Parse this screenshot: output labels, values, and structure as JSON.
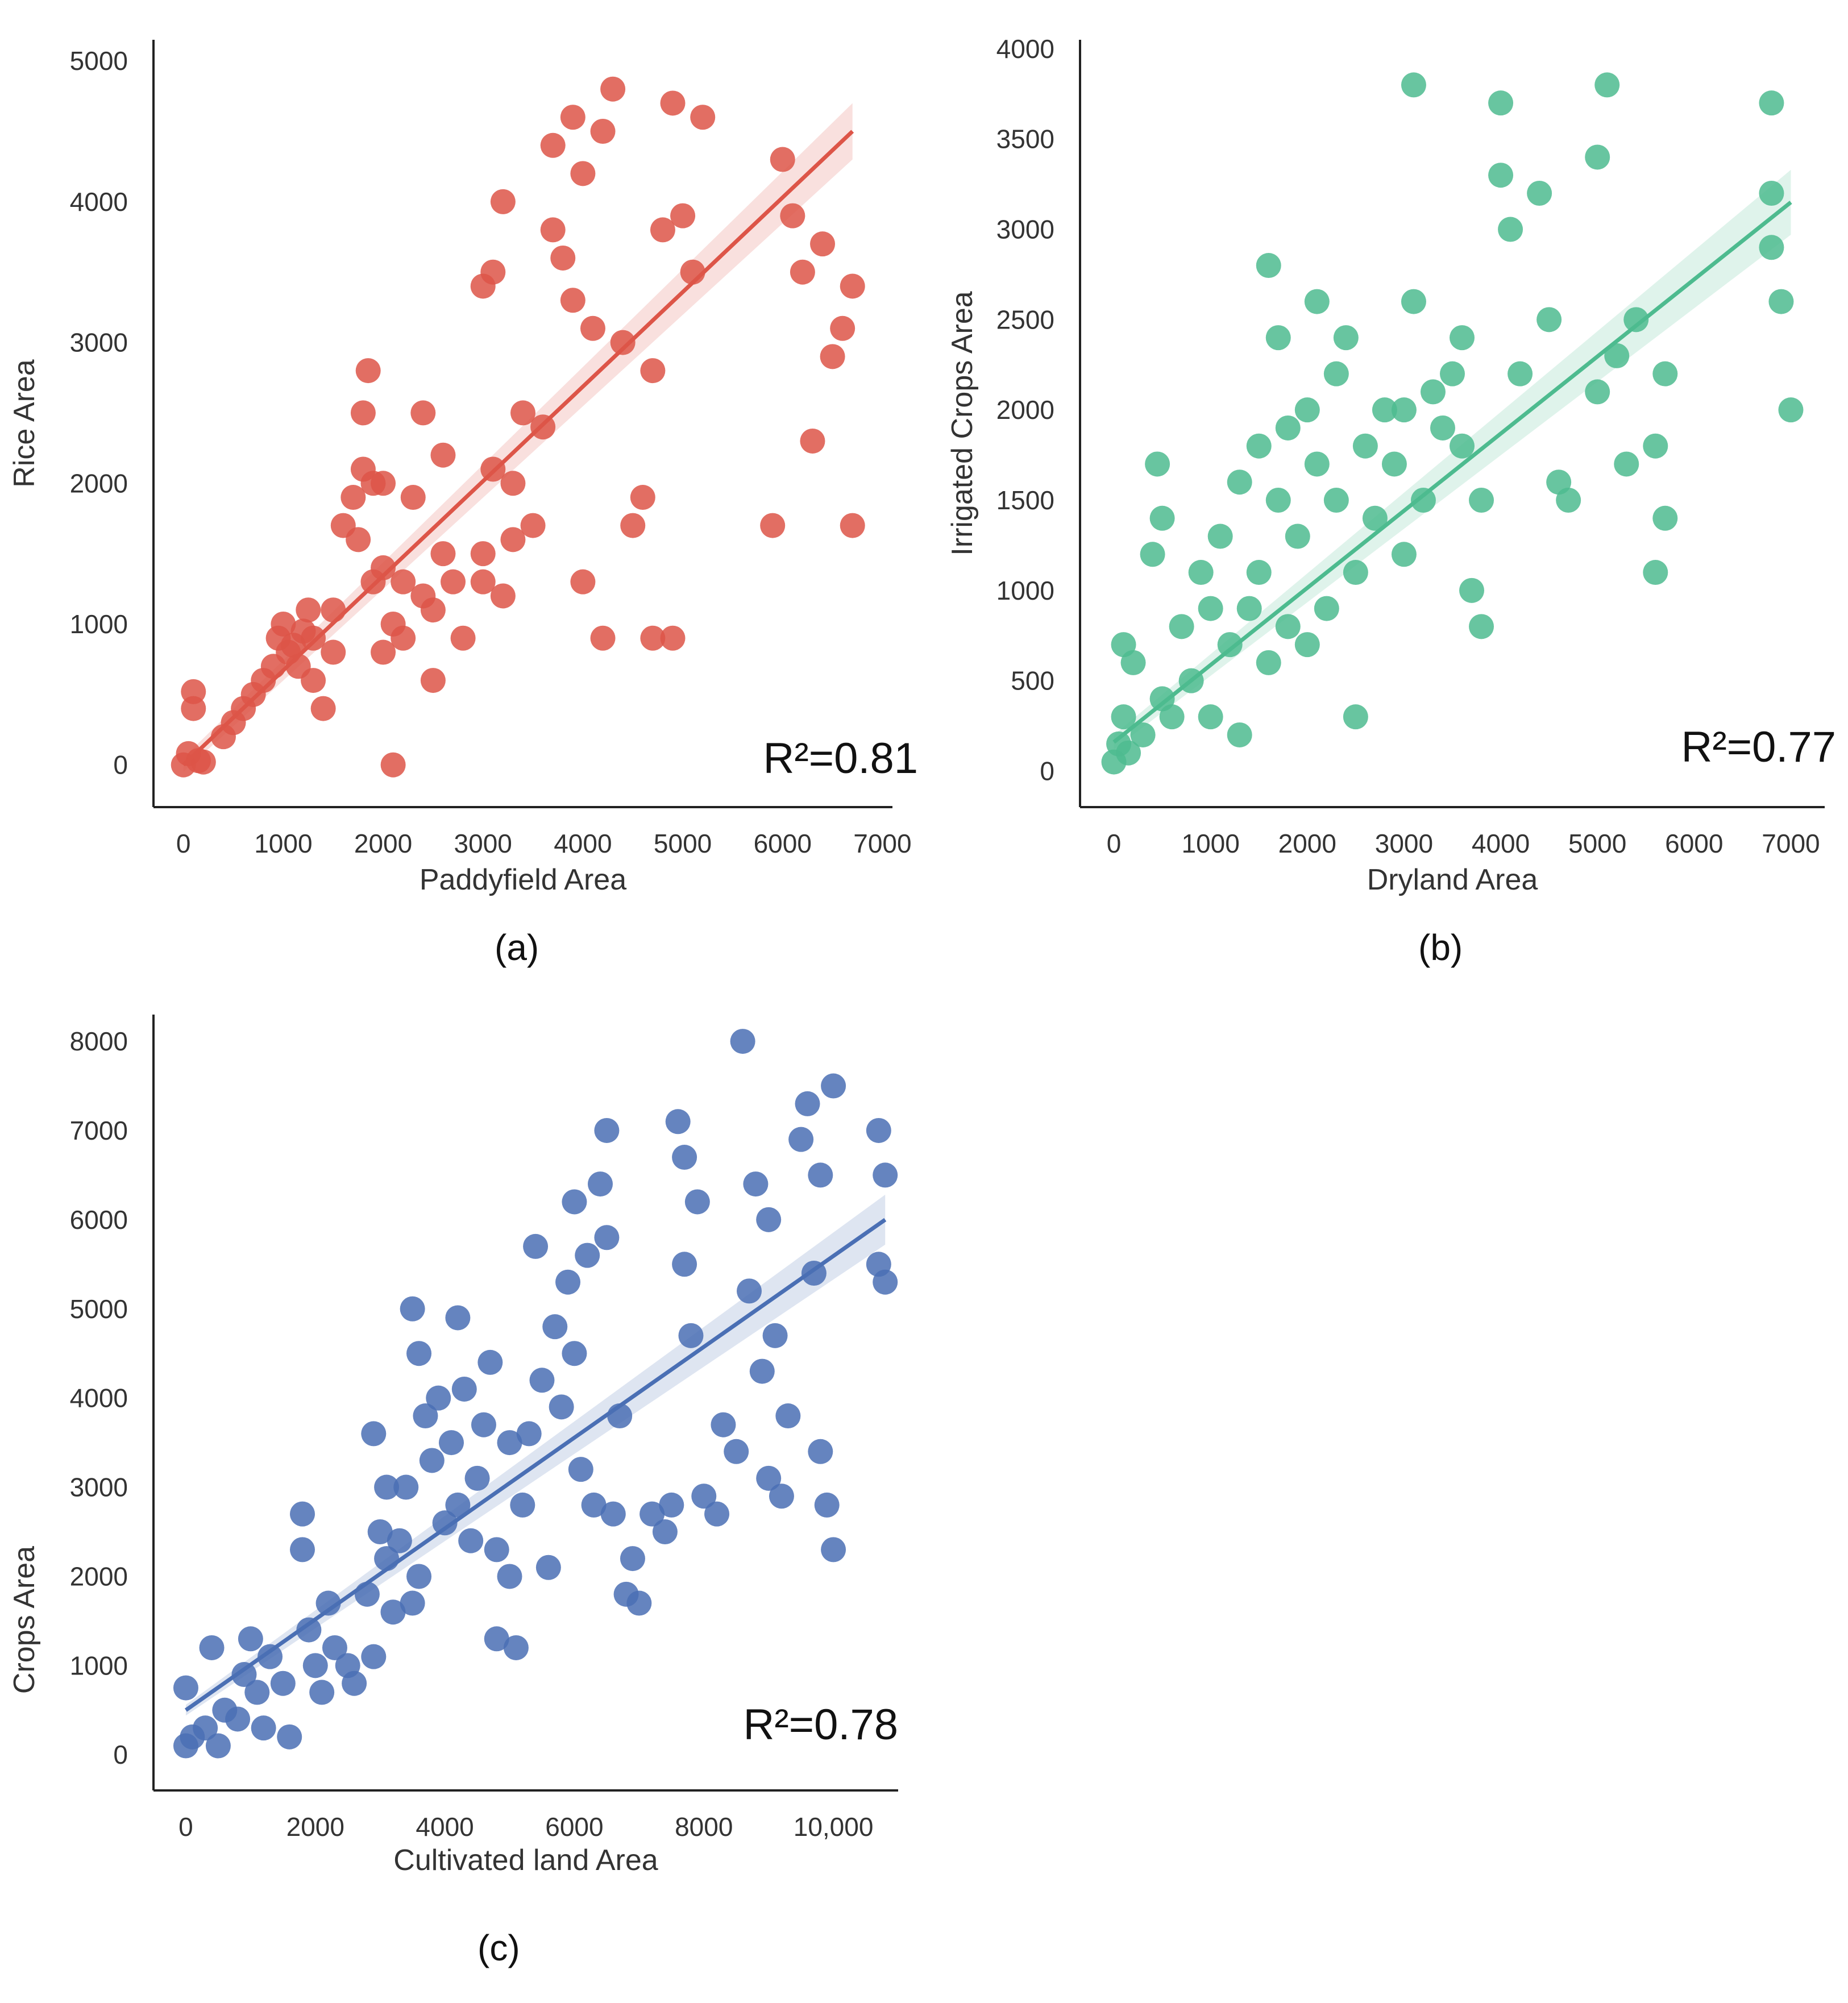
{
  "panels": [
    {
      "label": "(a)",
      "r2": "R²=0.81"
    },
    {
      "label": "(b)",
      "r2": "R²=0.77"
    },
    {
      "label": "(c)",
      "r2": "R²=0.78"
    }
  ],
  "chart_data": [
    {
      "type": "scatter",
      "panel": "(a)",
      "xlabel": "Paddyfield Area",
      "ylabel": "Rice Area",
      "xlim": [
        -300,
        7100
      ],
      "ylim": [
        -300,
        5150
      ],
      "xticks": [
        0,
        1000,
        2000,
        3000,
        4000,
        5000,
        6000,
        7000
      ],
      "xtick_labels": [
        "0",
        "1000",
        "2000",
        "3000",
        "4000",
        "5000",
        "6000",
        "7000"
      ],
      "yticks": [
        0,
        1000,
        2000,
        3000,
        4000,
        5000
      ],
      "ytick_labels": [
        "0",
        "1000",
        "2000",
        "3000",
        "4000",
        "5000"
      ],
      "color": "#dd5548",
      "r2": "R²=0.81",
      "fit": {
        "x": [
          0,
          6700
        ],
        "y": [
          0,
          4500
        ],
        "ci_half_width": [
          50,
          200
        ]
      },
      "points": [
        [
          0,
          0
        ],
        [
          50,
          80
        ],
        [
          100,
          520
        ],
        [
          100,
          400
        ],
        [
          150,
          30
        ],
        [
          200,
          20
        ],
        [
          400,
          200
        ],
        [
          500,
          300
        ],
        [
          600,
          400
        ],
        [
          700,
          500
        ],
        [
          800,
          600
        ],
        [
          900,
          700
        ],
        [
          950,
          900
        ],
        [
          1000,
          1000
        ],
        [
          1050,
          800
        ],
        [
          1100,
          850
        ],
        [
          1150,
          700
        ],
        [
          1200,
          950
        ],
        [
          1250,
          1100
        ],
        [
          1300,
          900
        ],
        [
          1300,
          600
        ],
        [
          1400,
          400
        ],
        [
          1500,
          1100
        ],
        [
          1500,
          800
        ],
        [
          1600,
          1700
        ],
        [
          1700,
          1900
        ],
        [
          1750,
          1600
        ],
        [
          1800,
          2100
        ],
        [
          1800,
          2500
        ],
        [
          1850,
          2800
        ],
        [
          1900,
          2000
        ],
        [
          1900,
          1300
        ],
        [
          2000,
          1400
        ],
        [
          2000,
          800
        ],
        [
          2100,
          1000
        ],
        [
          2100,
          0
        ],
        [
          2200,
          1300
        ],
        [
          2200,
          900
        ],
        [
          2300,
          1900
        ],
        [
          2400,
          2500
        ],
        [
          2400,
          1200
        ],
        [
          2500,
          1100
        ],
        [
          2500,
          600
        ],
        [
          2600,
          1500
        ],
        [
          2700,
          1300
        ],
        [
          2800,
          900
        ],
        [
          3000,
          1500
        ],
        [
          3000,
          1300
        ],
        [
          3000,
          3400
        ],
        [
          3100,
          3500
        ],
        [
          3100,
          2100
        ],
        [
          3200,
          4000
        ],
        [
          3200,
          1200
        ],
        [
          3300,
          2000
        ],
        [
          3300,
          1600
        ],
        [
          3400,
          2500
        ],
        [
          3500,
          1700
        ],
        [
          3600,
          2400
        ],
        [
          3700,
          4400
        ],
        [
          3700,
          3800
        ],
        [
          3800,
          3600
        ],
        [
          3900,
          4600
        ],
        [
          3900,
          3300
        ],
        [
          4000,
          4200
        ],
        [
          4000,
          1300
        ],
        [
          4100,
          3100
        ],
        [
          4200,
          900
        ],
        [
          4200,
          4500
        ],
        [
          4300,
          4800
        ],
        [
          4400,
          3000
        ],
        [
          4500,
          1700
        ],
        [
          4600,
          1900
        ],
        [
          4700,
          2800
        ],
        [
          4700,
          900
        ],
        [
          4800,
          3800
        ],
        [
          4900,
          4700
        ],
        [
          4900,
          900
        ],
        [
          5000,
          3900
        ],
        [
          5100,
          3500
        ],
        [
          5200,
          4600
        ],
        [
          6000,
          4300
        ],
        [
          6100,
          3900
        ],
        [
          6200,
          3500
        ],
        [
          6300,
          2300
        ],
        [
          6400,
          3700
        ],
        [
          6500,
          2900
        ],
        [
          6600,
          3100
        ],
        [
          6700,
          3400
        ],
        [
          6700,
          1700
        ],
        [
          5900,
          1700
        ],
        [
          2000,
          2000
        ],
        [
          2600,
          2200
        ]
      ]
    },
    {
      "type": "scatter",
      "panel": "(b)",
      "xlabel": "Dryland Area",
      "ylabel": "Irrigated Crops Area",
      "xlim": [
        -350,
        7350
      ],
      "ylim": [
        -200,
        4050
      ],
      "xticks": [
        0,
        1000,
        2000,
        3000,
        4000,
        5000,
        6000,
        7000
      ],
      "xtick_labels": [
        "0",
        "1000",
        "2000",
        "3000",
        "4000",
        "5000",
        "6000",
        "7000"
      ],
      "yticks": [
        0,
        500,
        1000,
        1500,
        2000,
        2500,
        3000,
        3500,
        4000
      ],
      "ytick_labels": [
        "0",
        "500",
        "1000",
        "1500",
        "2000",
        "2500",
        "3000",
        "3500",
        "4000"
      ],
      "color": "#4dbb8f",
      "r2": "R²=0.77",
      "fit": {
        "x": [
          0,
          7000
        ],
        "y": [
          160,
          3150
        ],
        "ci_half_width": [
          40,
          180
        ]
      },
      "points": [
        [
          0,
          50
        ],
        [
          50,
          150
        ],
        [
          100,
          700
        ],
        [
          100,
          300
        ],
        [
          150,
          100
        ],
        [
          200,
          600
        ],
        [
          300,
          200
        ],
        [
          400,
          1200
        ],
        [
          450,
          1700
        ],
        [
          500,
          400
        ],
        [
          500,
          1400
        ],
        [
          600,
          300
        ],
        [
          700,
          800
        ],
        [
          800,
          500
        ],
        [
          900,
          1100
        ],
        [
          1000,
          900
        ],
        [
          1000,
          300
        ],
        [
          1100,
          1300
        ],
        [
          1200,
          700
        ],
        [
          1300,
          1600
        ],
        [
          1300,
          200
        ],
        [
          1400,
          900
        ],
        [
          1500,
          1800
        ],
        [
          1500,
          1100
        ],
        [
          1600,
          2800
        ],
        [
          1600,
          600
        ],
        [
          1700,
          1500
        ],
        [
          1700,
          2400
        ],
        [
          1800,
          800
        ],
        [
          1800,
          1900
        ],
        [
          1900,
          1300
        ],
        [
          2000,
          2000
        ],
        [
          2000,
          700
        ],
        [
          2100,
          2600
        ],
        [
          2100,
          1700
        ],
        [
          2200,
          900
        ],
        [
          2300,
          2200
        ],
        [
          2300,
          1500
        ],
        [
          2400,
          2400
        ],
        [
          2500,
          1100
        ],
        [
          2500,
          300
        ],
        [
          2600,
          1800
        ],
        [
          2700,
          1400
        ],
        [
          2800,
          2000
        ],
        [
          2900,
          1700
        ],
        [
          3000,
          2000
        ],
        [
          3000,
          1200
        ],
        [
          3100,
          3800
        ],
        [
          3100,
          2600
        ],
        [
          3200,
          1500
        ],
        [
          3300,
          2100
        ],
        [
          3400,
          1900
        ],
        [
          3500,
          2200
        ],
        [
          3600,
          2400
        ],
        [
          3600,
          1800
        ],
        [
          3700,
          1000
        ],
        [
          3800,
          800
        ],
        [
          3800,
          1500
        ],
        [
          4000,
          3700
        ],
        [
          4000,
          3300
        ],
        [
          4100,
          3000
        ],
        [
          4200,
          2200
        ],
        [
          4400,
          3200
        ],
        [
          4500,
          2500
        ],
        [
          4600,
          1600
        ],
        [
          4700,
          1500
        ],
        [
          5000,
          2100
        ],
        [
          5000,
          3400
        ],
        [
          5100,
          3800
        ],
        [
          5200,
          2300
        ],
        [
          5300,
          1700
        ],
        [
          5400,
          2500
        ],
        [
          5600,
          1800
        ],
        [
          5600,
          1100
        ],
        [
          5700,
          2200
        ],
        [
          5700,
          1400
        ],
        [
          6800,
          3700
        ],
        [
          6800,
          3200
        ],
        [
          6900,
          2600
        ],
        [
          6800,
          2900
        ],
        [
          7000,
          2000
        ]
      ]
    },
    {
      "type": "scatter",
      "panel": "(c)",
      "xlabel": "Cultivated land Area",
      "ylabel": "Crops Area",
      "xlim": [
        -500,
        11000
      ],
      "ylim": [
        -400,
        8300
      ],
      "xticks": [
        0,
        2000,
        4000,
        6000,
        8000,
        10000
      ],
      "xtick_labels": [
        "0",
        "2000",
        "4000",
        "6000",
        "8000",
        "10,000"
      ],
      "yticks": [
        0,
        1000,
        2000,
        3000,
        4000,
        5000,
        6000,
        7000,
        8000
      ],
      "ytick_labels": [
        "0",
        "1000",
        "2000",
        "3000",
        "4000",
        "5000",
        "6000",
        "7000",
        "8000"
      ],
      "color": "#4a6fb4",
      "r2": "R²=0.78",
      "fit": {
        "x": [
          0,
          10800
        ],
        "y": [
          500,
          6000
        ],
        "ci_half_width": [
          60,
          280
        ]
      },
      "points": [
        [
          0,
          100
        ],
        [
          0,
          750
        ],
        [
          100,
          200
        ],
        [
          300,
          300
        ],
        [
          400,
          1200
        ],
        [
          500,
          100
        ],
        [
          600,
          500
        ],
        [
          800,
          400
        ],
        [
          900,
          900
        ],
        [
          1000,
          1300
        ],
        [
          1100,
          700
        ],
        [
          1200,
          300
        ],
        [
          1300,
          1100
        ],
        [
          1500,
          800
        ],
        [
          1600,
          200
        ],
        [
          1800,
          2300
        ],
        [
          1800,
          2700
        ],
        [
          1900,
          1400
        ],
        [
          2000,
          1000
        ],
        [
          2100,
          700
        ],
        [
          2200,
          1700
        ],
        [
          2300,
          1200
        ],
        [
          2500,
          1000
        ],
        [
          2600,
          800
        ],
        [
          2800,
          1800
        ],
        [
          2900,
          1100
        ],
        [
          2900,
          3600
        ],
        [
          3000,
          2500
        ],
        [
          3100,
          3000
        ],
        [
          3100,
          2200
        ],
        [
          3200,
          1600
        ],
        [
          3300,
          2400
        ],
        [
          3400,
          3000
        ],
        [
          3500,
          5000
        ],
        [
          3500,
          1700
        ],
        [
          3600,
          4500
        ],
        [
          3600,
          2000
        ],
        [
          3700,
          3800
        ],
        [
          3800,
          3300
        ],
        [
          3900,
          4000
        ],
        [
          4000,
          2600
        ],
        [
          4100,
          3500
        ],
        [
          4200,
          4900
        ],
        [
          4200,
          2800
        ],
        [
          4300,
          4100
        ],
        [
          4400,
          2400
        ],
        [
          4500,
          3100
        ],
        [
          4600,
          3700
        ],
        [
          4700,
          4400
        ],
        [
          4800,
          2300
        ],
        [
          4800,
          1300
        ],
        [
          5000,
          2000
        ],
        [
          5000,
          3500
        ],
        [
          5100,
          1200
        ],
        [
          5200,
          2800
        ],
        [
          5300,
          3600
        ],
        [
          5400,
          5700
        ],
        [
          5500,
          4200
        ],
        [
          5600,
          2100
        ],
        [
          5700,
          4800
        ],
        [
          5800,
          3900
        ],
        [
          5900,
          5300
        ],
        [
          6000,
          6200
        ],
        [
          6000,
          4500
        ],
        [
          6100,
          3200
        ],
        [
          6200,
          5600
        ],
        [
          6300,
          2800
        ],
        [
          6400,
          6400
        ],
        [
          6500,
          7000
        ],
        [
          6500,
          5800
        ],
        [
          6600,
          2700
        ],
        [
          6700,
          3800
        ],
        [
          6800,
          1800
        ],
        [
          6900,
          2200
        ],
        [
          7000,
          1700
        ],
        [
          7200,
          2700
        ],
        [
          7400,
          2500
        ],
        [
          7500,
          2800
        ],
        [
          7600,
          7100
        ],
        [
          7700,
          6700
        ],
        [
          7700,
          5500
        ],
        [
          7800,
          4700
        ],
        [
          7900,
          6200
        ],
        [
          8000,
          2900
        ],
        [
          8200,
          2700
        ],
        [
          8300,
          3700
        ],
        [
          8500,
          3400
        ],
        [
          8600,
          8000
        ],
        [
          8700,
          5200
        ],
        [
          8800,
          6400
        ],
        [
          8900,
          4300
        ],
        [
          9000,
          6000
        ],
        [
          9000,
          3100
        ],
        [
          9100,
          4700
        ],
        [
          9200,
          2900
        ],
        [
          9300,
          3800
        ],
        [
          9500,
          6900
        ],
        [
          9700,
          5400
        ],
        [
          9800,
          3400
        ],
        [
          9900,
          2800
        ],
        [
          10000,
          7500
        ],
        [
          10000,
          2300
        ],
        [
          10700,
          7000
        ],
        [
          10700,
          5500
        ],
        [
          10800,
          6500
        ],
        [
          10800,
          5300
        ],
        [
          9600,
          7300
        ],
        [
          9800,
          6500
        ]
      ]
    }
  ]
}
